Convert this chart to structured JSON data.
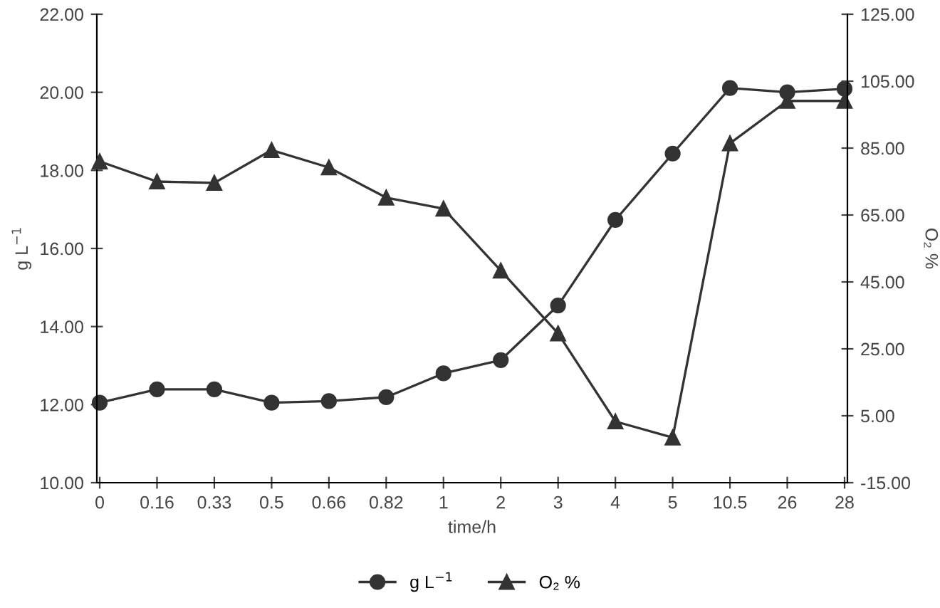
{
  "chart_data": {
    "type": "line",
    "xlabel": "time/h",
    "ylabel": "g L$^{−1}$",
    "y2label": "O₂ %",
    "categories": [
      "0",
      "0.16",
      "0.33",
      "0.5",
      "0.66",
      "0.82",
      "1",
      "2",
      "3",
      "4",
      "5",
      "10.5",
      "26",
      "28"
    ],
    "series": [
      {
        "name": "g L$^{−1}$",
        "color": "#333333",
        "marker": "circle",
        "values": [
          12.05,
          12.39,
          12.39,
          12.05,
          12.09,
          12.19,
          12.8,
          13.14,
          14.54,
          16.73,
          18.43,
          20.11,
          20.0,
          20.09
        ]
      },
      {
        "name": "O₂ %",
        "color": "#333333",
        "marker": "triangle",
        "axis": "y2",
        "values": [
          81.0,
          75.0,
          74.6,
          84.4,
          79.2,
          70.2,
          66.9,
          48.4,
          29.6,
          3.3,
          -1.5,
          86.4,
          99.1,
          99.1
        ]
      }
    ],
    "ylim": [
      10,
      22
    ],
    "yticks": [
      {
        "value": 10,
        "label": "10.00"
      },
      {
        "value": 12,
        "label": "12.00"
      },
      {
        "value": 14,
        "label": "14.00"
      },
      {
        "value": 16,
        "label": "16.00"
      },
      {
        "value": 18,
        "label": "18.00"
      },
      {
        "value": 20,
        "label": "20.00"
      },
      {
        "value": 22,
        "label": "22.00"
      }
    ],
    "y2lim": [
      -15,
      125
    ],
    "y2ticks": [
      {
        "value": -15,
        "label": "-15.00"
      },
      {
        "value": 5,
        "label": "5.00"
      },
      {
        "value": 25,
        "label": "25.00"
      },
      {
        "value": 45,
        "label": "45.00"
      },
      {
        "value": 65,
        "label": "65.00"
      },
      {
        "value": 85,
        "label": "85.00"
      },
      {
        "value": 105,
        "label": "105.00"
      },
      {
        "value": 125,
        "label": "125.00"
      }
    ],
    "grid": false,
    "legend": "bottom",
    "line_style": "solid"
  }
}
